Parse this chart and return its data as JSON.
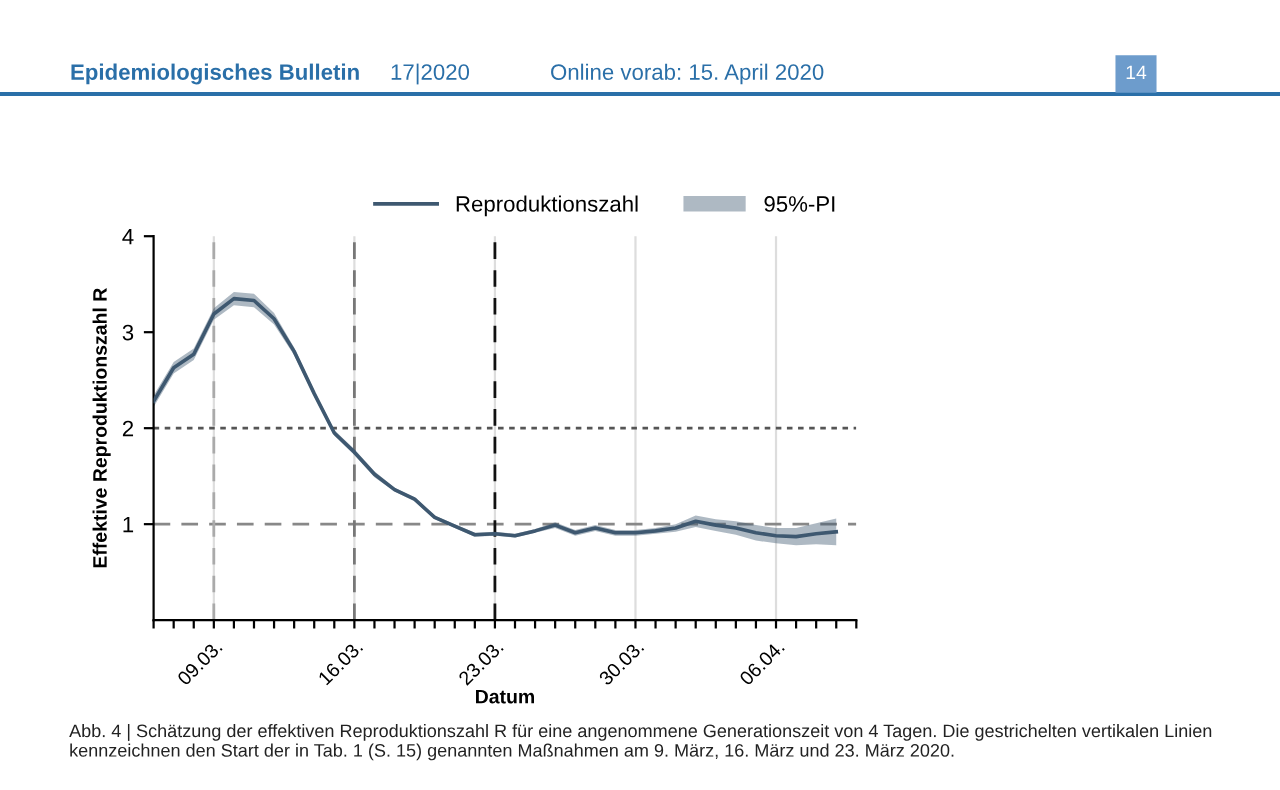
{
  "chart_data": {
    "type": "line",
    "x": [
      "2020-03-06",
      "2020-03-07",
      "2020-03-08",
      "2020-03-09",
      "2020-03-10",
      "2020-03-11",
      "2020-03-12",
      "2020-03-13",
      "2020-03-14",
      "2020-03-15",
      "2020-03-16",
      "2020-03-17",
      "2020-03-18",
      "2020-03-19",
      "2020-03-20",
      "2020-03-21",
      "2020-03-22",
      "2020-03-23",
      "2020-03-24",
      "2020-03-25",
      "2020-03-26",
      "2020-03-27",
      "2020-03-28",
      "2020-03-29",
      "2020-03-30",
      "2020-03-31",
      "2020-04-01",
      "2020-04-02",
      "2020-04-03",
      "2020-04-04",
      "2020-04-05",
      "2020-04-06",
      "2020-04-07",
      "2020-04-08",
      "2020-04-09"
    ],
    "series": [
      {
        "name": "Reproduktionszahl",
        "color": "#3e5870",
        "lower": [
          2.22,
          2.57,
          2.71,
          3.13,
          3.28,
          3.26,
          3.08,
          2.76,
          2.33,
          1.92,
          1.72,
          1.49,
          1.34,
          1.24,
          1.05,
          0.96,
          0.87,
          0.88,
          0.86,
          0.91,
          0.96,
          0.88,
          0.93,
          0.88,
          0.88,
          0.9,
          0.92,
          0.97,
          0.93,
          0.89,
          0.83,
          0.8,
          0.78,
          0.79,
          0.78
        ],
        "upper": [
          2.34,
          2.69,
          2.83,
          3.25,
          3.42,
          3.4,
          3.2,
          2.84,
          2.39,
          1.98,
          1.78,
          1.55,
          1.38,
          1.28,
          1.09,
          1.0,
          0.91,
          0.92,
          0.9,
          0.95,
          1.02,
          0.94,
          0.99,
          0.94,
          0.94,
          0.96,
          1.0,
          1.09,
          1.05,
          1.03,
          0.99,
          0.96,
          0.96,
          1.01,
          1.06
        ],
        "values": [
          2.28,
          2.63,
          2.77,
          3.19,
          3.35,
          3.33,
          3.14,
          2.8,
          2.36,
          1.95,
          1.75,
          1.52,
          1.36,
          1.26,
          1.07,
          0.98,
          0.89,
          0.9,
          0.88,
          0.93,
          0.99,
          0.91,
          0.96,
          0.91,
          0.91,
          0.93,
          0.96,
          1.03,
          0.99,
          0.96,
          0.91,
          0.88,
          0.87,
          0.9,
          0.92
        ]
      }
    ],
    "xlim": [
      "2020-03-06",
      "2020-04-10"
    ],
    "xticks": [
      {
        "value": "2020-03-06",
        "label": null
      },
      {
        "value": "2020-03-07",
        "label": null
      },
      {
        "value": "2020-03-08",
        "label": null
      },
      {
        "value": "2020-03-09",
        "label": "09.03."
      },
      {
        "value": "2020-03-10",
        "label": null
      },
      {
        "value": "2020-03-11",
        "label": null
      },
      {
        "value": "2020-03-12",
        "label": null
      },
      {
        "value": "2020-03-13",
        "label": null
      },
      {
        "value": "2020-03-14",
        "label": null
      },
      {
        "value": "2020-03-15",
        "label": null
      },
      {
        "value": "2020-03-16",
        "label": "16.03."
      },
      {
        "value": "2020-03-17",
        "label": null
      },
      {
        "value": "2020-03-18",
        "label": null
      },
      {
        "value": "2020-03-19",
        "label": null
      },
      {
        "value": "2020-03-20",
        "label": null
      },
      {
        "value": "2020-03-21",
        "label": null
      },
      {
        "value": "2020-03-22",
        "label": null
      },
      {
        "value": "2020-03-23",
        "label": "23.03."
      },
      {
        "value": "2020-03-24",
        "label": null
      },
      {
        "value": "2020-03-25",
        "label": null
      },
      {
        "value": "2020-03-26",
        "label": null
      },
      {
        "value": "2020-03-27",
        "label": null
      },
      {
        "value": "2020-03-28",
        "label": null
      },
      {
        "value": "2020-03-29",
        "label": null
      },
      {
        "value": "2020-03-30",
        "label": "30.03."
      },
      {
        "value": "2020-03-31",
        "label": null
      },
      {
        "value": "2020-04-01",
        "label": null
      },
      {
        "value": "2020-04-02",
        "label": null
      },
      {
        "value": "2020-04-03",
        "label": null
      },
      {
        "value": "2020-04-04",
        "label": null
      },
      {
        "value": "2020-04-05",
        "label": null
      },
      {
        "value": "2020-04-06",
        "label": "06.04."
      },
      {
        "value": "2020-04-07",
        "label": null
      },
      {
        "value": "2020-04-08",
        "label": null
      },
      {
        "value": "2020-04-09",
        "label": null
      },
      {
        "value": "2020-04-10",
        "label": null
      }
    ],
    "ylim": [
      0,
      4
    ],
    "yticks": [
      1,
      2,
      3,
      4
    ],
    "xlabel": "Datum",
    "ylabel": "Effektive Reproduktionszahl R",
    "grid": "x",
    "legend": "top right",
    "marker": "none",
    "line_style": "solid",
    "ref_lines": [
      {
        "axis": "y",
        "value": 2,
        "color": "#555555",
        "line_style": "dotted"
      },
      {
        "axis": "y",
        "value": 1,
        "color": "#888888",
        "line_style": "dashed"
      },
      {
        "axis": "x",
        "value": "2020-03-09",
        "color": "#aaaaaa",
        "line_style": "dashed"
      },
      {
        "axis": "x",
        "value": "2020-03-16",
        "color": "#777777",
        "line_style": "dashed"
      },
      {
        "axis": "x",
        "value": "2020-03-23",
        "color": "#111111",
        "line_style": "dashed"
      }
    ],
    "annotations": [
      "95%-PI",
      "Epidemiologisches Bulletin",
      "17|2020",
      "Online vorab: 15. April 2020",
      "14",
      "Abb. 4 | Schätzung der effektiven Reproduktionszahl R für eine angenommene Generationszeit von 4 Tagen. Die gestrichelten vertikalen Linien kennzeichnen den Start der in Tab. 1 (S. 15) genannten Maßnahmen am 9. März, 16. März und 23. März 2020."
    ]
  }
}
